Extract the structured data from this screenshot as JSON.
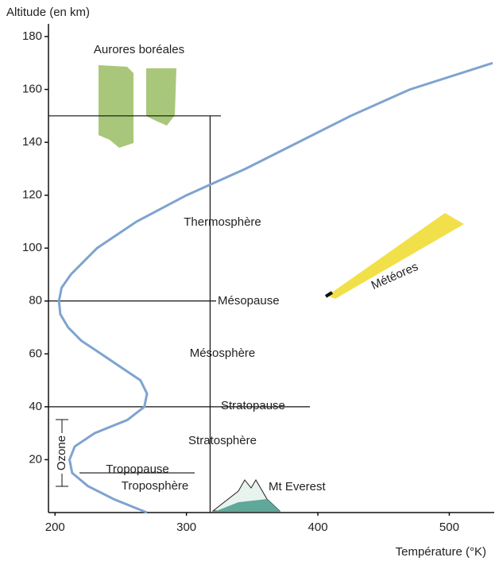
{
  "chart_data": {
    "type": "line",
    "y_label": "Altitude (en km)",
    "x_label": "Température (°K)",
    "x": [
      270,
      245,
      225,
      213,
      211,
      215,
      230,
      255,
      268,
      270,
      265,
      250,
      235,
      220,
      210,
      204,
      203,
      205,
      212,
      232,
      262,
      300,
      318,
      345,
      385,
      425,
      470,
      533
    ],
    "series": [
      {
        "color": "#7fa3d1",
        "values": [
          0,
          5,
          10,
          15,
          20,
          25,
          30,
          35,
          40,
          45,
          50,
          55,
          60,
          65,
          70,
          75,
          80,
          85,
          90,
          100,
          110,
          120,
          124,
          130,
          140,
          150,
          160,
          170
        ]
      }
    ],
    "xlim": [
      195,
      533
    ],
    "ylim": [
      0,
      180
    ],
    "xticks": [
      200,
      300,
      400,
      500
    ],
    "yticks": [
      20,
      40,
      60,
      80,
      100,
      120,
      140,
      160,
      180
    ],
    "hlines": [
      150,
      80,
      40,
      15
    ],
    "vline": 318,
    "annotations": [
      "Aurores boréales",
      "Thermosphère",
      "Mésopause",
      "Mésosphère",
      "Stratopause",
      "Stratosphère",
      "Tropopause",
      "Troposphère",
      "Mt Everest",
      "Météores",
      "Ozone"
    ]
  }
}
